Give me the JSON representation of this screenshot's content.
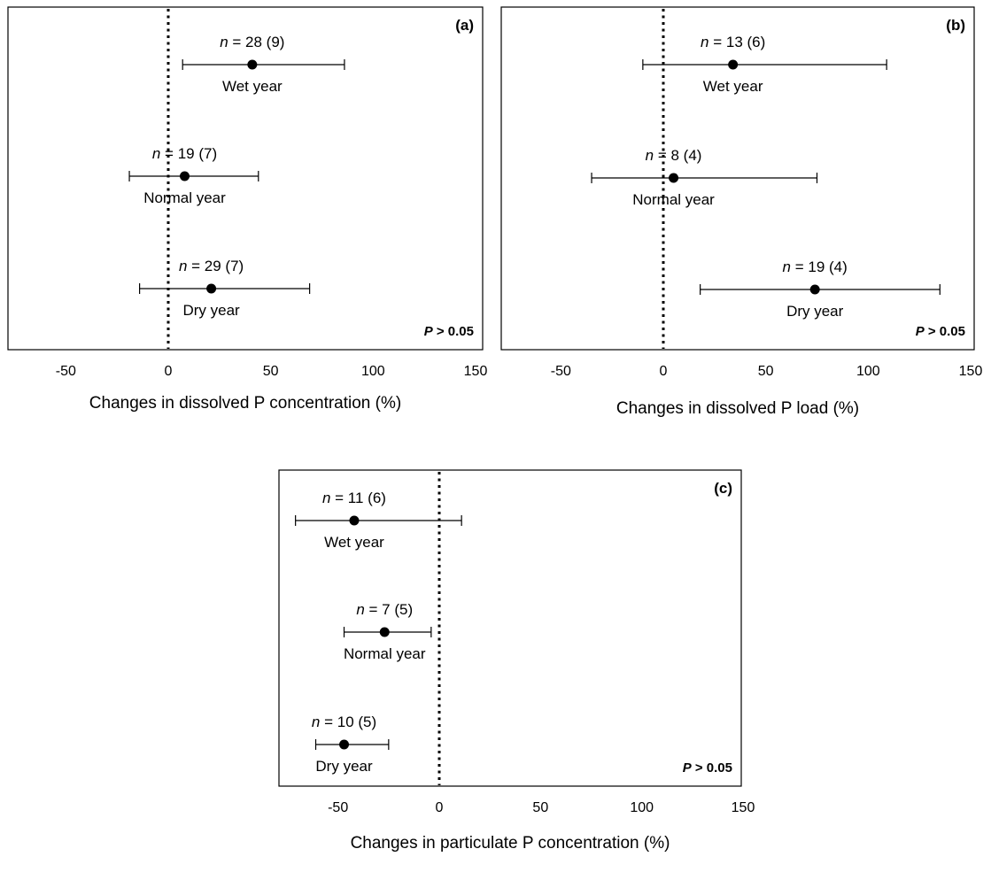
{
  "chart_data": [
    {
      "type": "scatter",
      "panel_label": "(a)",
      "xlabel": "Changes in dissolved P concentration (%)",
      "xlim": [
        -80,
        150
      ],
      "xticks": [
        -50,
        0,
        50,
        100,
        150
      ],
      "reference_line": 0,
      "significance": "P > 0.05",
      "points": [
        {
          "group": "Wet year",
          "n_label": "n = 28 (9)",
          "value": 41,
          "lower": 7,
          "upper": 86
        },
        {
          "group": "Normal year",
          "n_label": "n = 19 (7)",
          "value": 8,
          "lower": -19,
          "upper": 44
        },
        {
          "group": "Dry year",
          "n_label": "n = 29 (7)",
          "value": 21,
          "lower": -14,
          "upper": 69
        }
      ]
    },
    {
      "type": "scatter",
      "panel_label": "(b)",
      "xlabel": "Changes in dissolved P load (%)",
      "xlim": [
        -80,
        150
      ],
      "xticks": [
        -50,
        0,
        50,
        100,
        150
      ],
      "reference_line": 0,
      "significance": "P > 0.05",
      "points": [
        {
          "group": "Wet year",
          "n_label": "n = 13 (6)",
          "value": 34,
          "lower": -10,
          "upper": 109
        },
        {
          "group": "Normal year",
          "n_label": "n = 8 (4)",
          "value": 5,
          "lower": -35,
          "upper": 75
        },
        {
          "group": "Dry year",
          "n_label": "n = 19 (4)",
          "value": 74,
          "lower": 18,
          "upper": 135
        }
      ]
    },
    {
      "type": "scatter",
      "panel_label": "(c)",
      "xlabel": "Changes in particulate P concentration (%)",
      "xlim": [
        -78,
        150
      ],
      "xticks": [
        -50,
        0,
        50,
        100,
        150
      ],
      "reference_line": 0,
      "significance": "P > 0.05",
      "points": [
        {
          "group": "Wet year",
          "n_label": "n = 11 (6)",
          "value": -42,
          "lower": -71,
          "upper": 11
        },
        {
          "group": "Normal year",
          "n_label": "n = 7 (5)",
          "value": -27,
          "lower": -47,
          "upper": -4
        },
        {
          "group": "Dry year",
          "n_label": "n = 10 (5)",
          "value": -47,
          "lower": -61,
          "upper": -25
        }
      ]
    }
  ]
}
